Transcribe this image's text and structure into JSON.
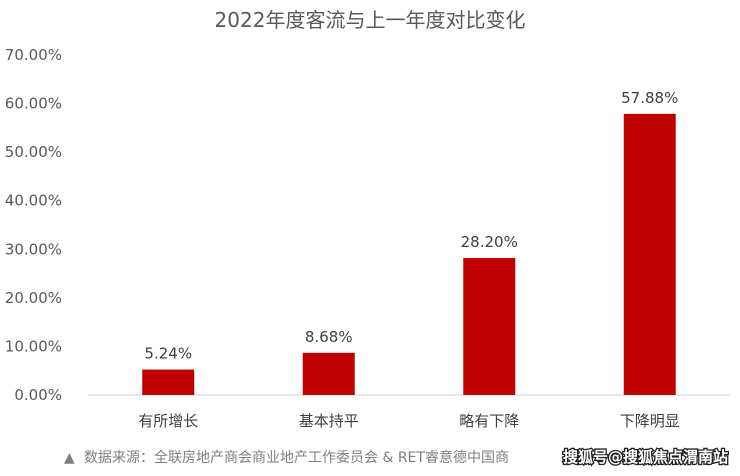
{
  "chart_data": {
    "type": "bar",
    "title": "2022年度客流与上一年度对比变化",
    "categories": [
      "有所增长",
      "基本持平",
      "略有下降",
      "下降明显"
    ],
    "values": [
      5.24,
      8.68,
      28.2,
      57.88
    ],
    "data_labels": [
      "5.24%",
      "8.68%",
      "28.20%",
      "57.88%"
    ],
    "yticks": [
      "0.00%",
      "10.00%",
      "20.00%",
      "30.00%",
      "40.00%",
      "50.00%",
      "60.00%",
      "70.00%"
    ],
    "ylim": [
      0,
      70
    ],
    "grid": false,
    "bar_color": "#c00000"
  },
  "source_note": "数据来源：全联房地产商会商业地产工作委员会 & RET睿意德中国商",
  "source_marker": "▲",
  "watermark": "搜狐号@搜狐焦点渭南站"
}
